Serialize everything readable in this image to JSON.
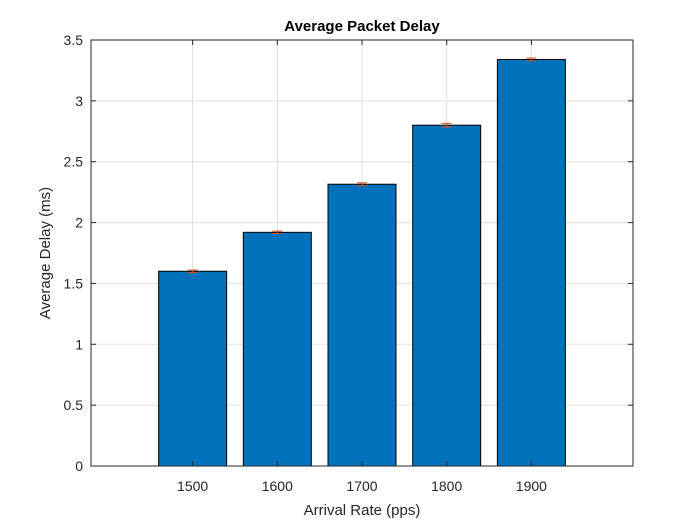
{
  "chart_data": {
    "type": "bar",
    "title": "Average Packet Delay",
    "xlabel": "Arrival Rate (pps)",
    "ylabel": "Average Delay (ms)",
    "categories": [
      "1500",
      "1600",
      "1700",
      "1800",
      "1900"
    ],
    "x": [
      1500,
      1600,
      1700,
      1800,
      1900
    ],
    "values": [
      1.6,
      1.92,
      2.315,
      2.8,
      3.34
    ],
    "error": [
      0.01,
      0.01,
      0.012,
      0.015,
      0.012
    ],
    "xlim": [
      1380,
      2020
    ],
    "ylim": [
      0,
      3.5
    ],
    "yticks": [
      0,
      0.5,
      1,
      1.5,
      2,
      2.5,
      3,
      3.5
    ],
    "ytick_labels": [
      "0",
      "0.5",
      "1",
      "1.5",
      "2",
      "2.5",
      "3",
      "3.5"
    ],
    "grid": true,
    "colors": {
      "bar": "#0072BD",
      "bar_edge": "#000000",
      "error": "#D95319",
      "grid": "#DFDFDF",
      "axis": "#262626",
      "text": "#262626"
    }
  }
}
